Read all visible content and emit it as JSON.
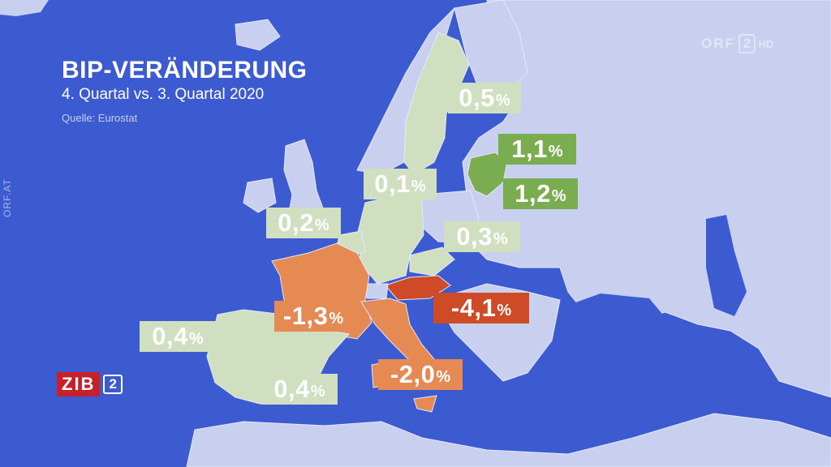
{
  "title": "BIP-VERÄNDERUNG",
  "subtitle": "4. Quartal vs. 3. Quartal 2020",
  "source": "Quelle: Eurostat",
  "broadcaster": {
    "logo_text": "ORF",
    "channel": "2",
    "hd": "HD",
    "side_url": "ORF.AT"
  },
  "show": {
    "name": "ZIB",
    "number": "2"
  },
  "colors": {
    "sea": "#3c5bd0",
    "land": "#c9d0ef",
    "light_green": "#cfdfbf",
    "green": "#7aad4f",
    "orange": "#e58a52",
    "red": "#cf4a26"
  },
  "labels": {
    "sweden": {
      "value": "0,5",
      "unit": "%"
    },
    "latvia": {
      "value": "1,1",
      "unit": "%"
    },
    "lithuania": {
      "value": "1,2",
      "unit": "%"
    },
    "denmark": {
      "value": "0,1",
      "unit": "%"
    },
    "belgium": {
      "value": "0,2",
      "unit": "%"
    },
    "czechia": {
      "value": "0,3",
      "unit": "%"
    },
    "austria": {
      "value": "-4,1",
      "unit": "%"
    },
    "france": {
      "value": "-1,3",
      "unit": "%"
    },
    "portugal": {
      "value": "0,4",
      "unit": "%"
    },
    "spain": {
      "value": "0,4",
      "unit": "%"
    },
    "italy": {
      "value": "-2,0",
      "unit": "%"
    }
  }
}
